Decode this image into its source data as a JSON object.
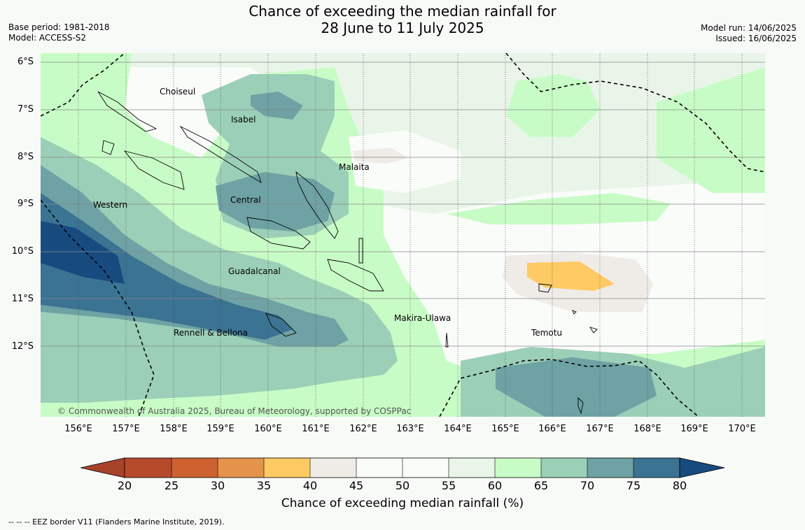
{
  "title": {
    "line1": "Chance of exceeding the median rainfall for",
    "line2": "28 June to 11 July 2025"
  },
  "left_meta": {
    "base_period": "Base period: 1981-2018",
    "model": "Model: ACCESS-S2"
  },
  "right_meta": {
    "model_run": "Model run: 14/06/2025",
    "issued": "Issued: 16/06/2025"
  },
  "map": {
    "lat_labels": [
      "6°S",
      "7°S",
      "8°S",
      "9°S",
      "10°S",
      "11°S",
      "12°S"
    ],
    "lon_labels": [
      "156°E",
      "157°E",
      "158°E",
      "159°E",
      "160°E",
      "161°E",
      "162°E",
      "163°E",
      "164°E",
      "165°E",
      "166°E",
      "167°E",
      "168°E",
      "169°E",
      "170°E"
    ],
    "regions": [
      "Choiseul",
      "Isabel",
      "Malaita",
      "Western",
      "Central",
      "Guadalcanal",
      "Makira-Ulawa",
      "Rennell & Bellona",
      "Temotu"
    ],
    "copyright": "© Commonwealth of Australia 2025, Bureau of Meteorology, supported by COSPPac"
  },
  "colorbar": {
    "ticks": [
      "20",
      "25",
      "30",
      "35",
      "40",
      "45",
      "50",
      "55",
      "60",
      "65",
      "70",
      "75",
      "80"
    ],
    "colors": [
      "#a8432a",
      "#b84a2c",
      "#cd6230",
      "#e3934a",
      "#fdca63",
      "#efebe6",
      "#fafcfa",
      "#fafcfa",
      "#e9f5e8",
      "#c8fcc6",
      "#9ccfb7",
      "#6ea2a4",
      "#3b7393",
      "#174b80"
    ],
    "label": "Chance of exceeding median rainfall (%)"
  },
  "legend": {
    "eez": "--  --  -- EEZ border V11 (Flanders Marine Institute, 2019)."
  }
}
